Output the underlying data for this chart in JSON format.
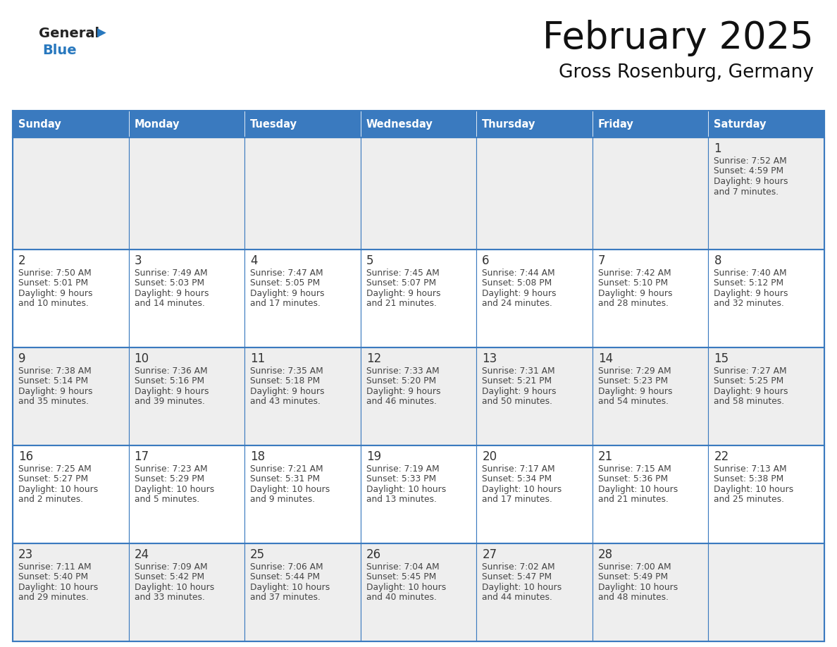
{
  "title": "February 2025",
  "subtitle": "Gross Rosenburg, Germany",
  "header_color": "#3a7abf",
  "header_text_color": "#ffffff",
  "days_of_week": [
    "Sunday",
    "Monday",
    "Tuesday",
    "Wednesday",
    "Thursday",
    "Friday",
    "Saturday"
  ],
  "row1_bg": "#eeeeee",
  "cell_bg_white": "#ffffff",
  "cell_bg_gray": "#eeeeee",
  "border_color": "#3a7abf",
  "day_number_color": "#333333",
  "text_color": "#444444",
  "calendar": [
    [
      null,
      null,
      null,
      null,
      null,
      null,
      {
        "day": "1",
        "sunrise": "7:52 AM",
        "sunset": "4:59 PM",
        "daylight_line1": "Daylight: 9 hours",
        "daylight_line2": "and 7 minutes."
      }
    ],
    [
      {
        "day": "2",
        "sunrise": "7:50 AM",
        "sunset": "5:01 PM",
        "daylight_line1": "Daylight: 9 hours",
        "daylight_line2": "and 10 minutes."
      },
      {
        "day": "3",
        "sunrise": "7:49 AM",
        "sunset": "5:03 PM",
        "daylight_line1": "Daylight: 9 hours",
        "daylight_line2": "and 14 minutes."
      },
      {
        "day": "4",
        "sunrise": "7:47 AM",
        "sunset": "5:05 PM",
        "daylight_line1": "Daylight: 9 hours",
        "daylight_line2": "and 17 minutes."
      },
      {
        "day": "5",
        "sunrise": "7:45 AM",
        "sunset": "5:07 PM",
        "daylight_line1": "Daylight: 9 hours",
        "daylight_line2": "and 21 minutes."
      },
      {
        "day": "6",
        "sunrise": "7:44 AM",
        "sunset": "5:08 PM",
        "daylight_line1": "Daylight: 9 hours",
        "daylight_line2": "and 24 minutes."
      },
      {
        "day": "7",
        "sunrise": "7:42 AM",
        "sunset": "5:10 PM",
        "daylight_line1": "Daylight: 9 hours",
        "daylight_line2": "and 28 minutes."
      },
      {
        "day": "8",
        "sunrise": "7:40 AM",
        "sunset": "5:12 PM",
        "daylight_line1": "Daylight: 9 hours",
        "daylight_line2": "and 32 minutes."
      }
    ],
    [
      {
        "day": "9",
        "sunrise": "7:38 AM",
        "sunset": "5:14 PM",
        "daylight_line1": "Daylight: 9 hours",
        "daylight_line2": "and 35 minutes."
      },
      {
        "day": "10",
        "sunrise": "7:36 AM",
        "sunset": "5:16 PM",
        "daylight_line1": "Daylight: 9 hours",
        "daylight_line2": "and 39 minutes."
      },
      {
        "day": "11",
        "sunrise": "7:35 AM",
        "sunset": "5:18 PM",
        "daylight_line1": "Daylight: 9 hours",
        "daylight_line2": "and 43 minutes."
      },
      {
        "day": "12",
        "sunrise": "7:33 AM",
        "sunset": "5:20 PM",
        "daylight_line1": "Daylight: 9 hours",
        "daylight_line2": "and 46 minutes."
      },
      {
        "day": "13",
        "sunrise": "7:31 AM",
        "sunset": "5:21 PM",
        "daylight_line1": "Daylight: 9 hours",
        "daylight_line2": "and 50 minutes."
      },
      {
        "day": "14",
        "sunrise": "7:29 AM",
        "sunset": "5:23 PM",
        "daylight_line1": "Daylight: 9 hours",
        "daylight_line2": "and 54 minutes."
      },
      {
        "day": "15",
        "sunrise": "7:27 AM",
        "sunset": "5:25 PM",
        "daylight_line1": "Daylight: 9 hours",
        "daylight_line2": "and 58 minutes."
      }
    ],
    [
      {
        "day": "16",
        "sunrise": "7:25 AM",
        "sunset": "5:27 PM",
        "daylight_line1": "Daylight: 10 hours",
        "daylight_line2": "and 2 minutes."
      },
      {
        "day": "17",
        "sunrise": "7:23 AM",
        "sunset": "5:29 PM",
        "daylight_line1": "Daylight: 10 hours",
        "daylight_line2": "and 5 minutes."
      },
      {
        "day": "18",
        "sunrise": "7:21 AM",
        "sunset": "5:31 PM",
        "daylight_line1": "Daylight: 10 hours",
        "daylight_line2": "and 9 minutes."
      },
      {
        "day": "19",
        "sunrise": "7:19 AM",
        "sunset": "5:33 PM",
        "daylight_line1": "Daylight: 10 hours",
        "daylight_line2": "and 13 minutes."
      },
      {
        "day": "20",
        "sunrise": "7:17 AM",
        "sunset": "5:34 PM",
        "daylight_line1": "Daylight: 10 hours",
        "daylight_line2": "and 17 minutes."
      },
      {
        "day": "21",
        "sunrise": "7:15 AM",
        "sunset": "5:36 PM",
        "daylight_line1": "Daylight: 10 hours",
        "daylight_line2": "and 21 minutes."
      },
      {
        "day": "22",
        "sunrise": "7:13 AM",
        "sunset": "5:38 PM",
        "daylight_line1": "Daylight: 10 hours",
        "daylight_line2": "and 25 minutes."
      }
    ],
    [
      {
        "day": "23",
        "sunrise": "7:11 AM",
        "sunset": "5:40 PM",
        "daylight_line1": "Daylight: 10 hours",
        "daylight_line2": "and 29 minutes."
      },
      {
        "day": "24",
        "sunrise": "7:09 AM",
        "sunset": "5:42 PM",
        "daylight_line1": "Daylight: 10 hours",
        "daylight_line2": "and 33 minutes."
      },
      {
        "day": "25",
        "sunrise": "7:06 AM",
        "sunset": "5:44 PM",
        "daylight_line1": "Daylight: 10 hours",
        "daylight_line2": "and 37 minutes."
      },
      {
        "day": "26",
        "sunrise": "7:04 AM",
        "sunset": "5:45 PM",
        "daylight_line1": "Daylight: 10 hours",
        "daylight_line2": "and 40 minutes."
      },
      {
        "day": "27",
        "sunrise": "7:02 AM",
        "sunset": "5:47 PM",
        "daylight_line1": "Daylight: 10 hours",
        "daylight_line2": "and 44 minutes."
      },
      {
        "day": "28",
        "sunrise": "7:00 AM",
        "sunset": "5:49 PM",
        "daylight_line1": "Daylight: 10 hours",
        "daylight_line2": "and 48 minutes."
      },
      null
    ]
  ]
}
